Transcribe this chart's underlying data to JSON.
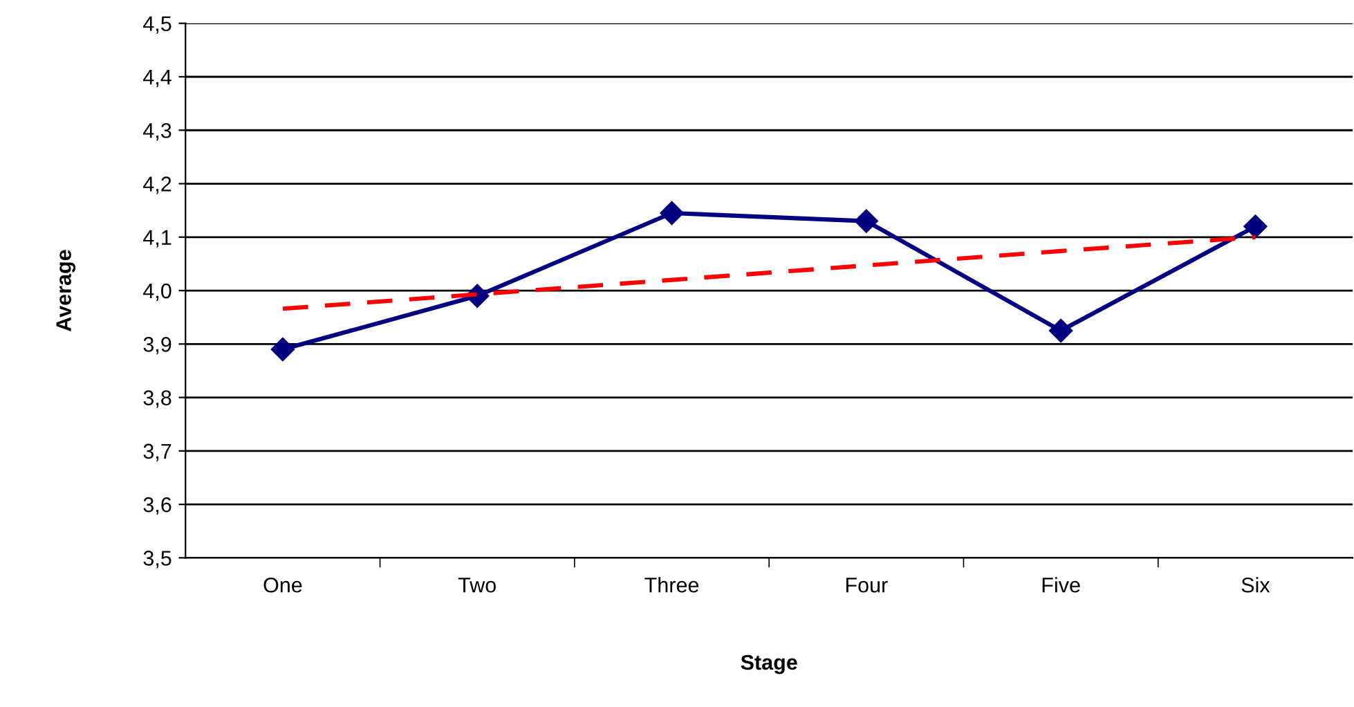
{
  "chart_data": {
    "type": "line",
    "xlabel": "Stage",
    "ylabel": "Average",
    "categories": [
      "One",
      "Two",
      "Three",
      "Four",
      "Five",
      "Six"
    ],
    "series": [
      {
        "color": "#000080",
        "values": [
          3.89,
          3.99,
          4.145,
          4.13,
          3.925,
          4.12
        ],
        "marker": "diamond",
        "line_style": "solid"
      },
      {
        "color": "#ff0000",
        "values": [
          3.966,
          3.993,
          4.02,
          4.047,
          4.074,
          4.1
        ],
        "marker": "none",
        "line_style": "dashed"
      }
    ],
    "ylim": [
      3.5,
      4.5
    ],
    "yticks": [
      {
        "value": 3.5,
        "label": "3,5"
      },
      {
        "value": 3.6,
        "label": "3,6"
      },
      {
        "value": 3.7,
        "label": "3,7"
      },
      {
        "value": 3.8,
        "label": "3,8"
      },
      {
        "value": 3.9,
        "label": "3,9"
      },
      {
        "value": 4.0,
        "label": "4,0"
      },
      {
        "value": 4.1,
        "label": "4,1"
      },
      {
        "value": 4.2,
        "label": "4,2"
      },
      {
        "value": 4.3,
        "label": "4,3"
      },
      {
        "value": 4.4,
        "label": "4,4"
      },
      {
        "value": 4.5,
        "label": "4,5"
      }
    ],
    "grid": "y",
    "legend": false
  }
}
